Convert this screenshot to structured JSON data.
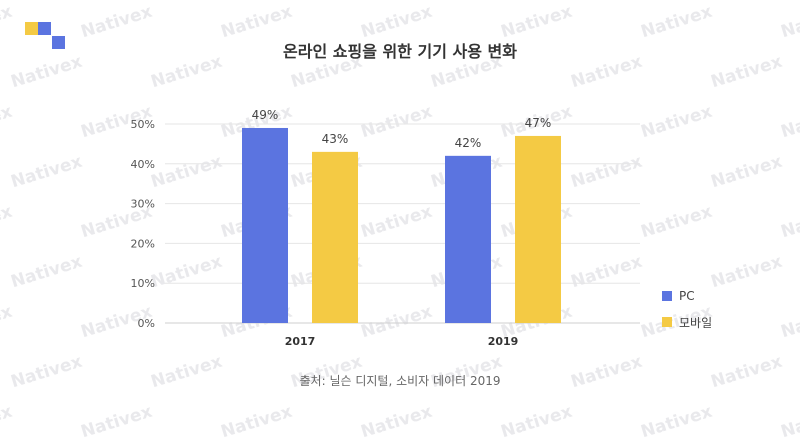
{
  "colors": {
    "logo": [
      "#f4ca44",
      "#5b74e0",
      "#5b74e0"
    ],
    "watermark": "#e9e9ec"
  },
  "watermark_text": "Nativex",
  "chart_data": {
    "type": "bar",
    "title": "온라인 쇼핑을 위한 기기 사용 변화",
    "categories": [
      "2017",
      "2019"
    ],
    "series": [
      {
        "name": "PC",
        "values": [
          49,
          42
        ],
        "labels": [
          "49%",
          "42%"
        ],
        "color": "#5b74e0"
      },
      {
        "name": "모바일",
        "values": [
          43,
          47
        ],
        "labels": [
          "43%",
          "47%"
        ],
        "color": "#f4ca44"
      }
    ],
    "ylim": [
      0,
      50
    ],
    "yticks": [
      "0%",
      "10%",
      "20%",
      "30%",
      "40%",
      "50%"
    ],
    "ytick_values": [
      0,
      10,
      20,
      30,
      40,
      50
    ],
    "grid": true,
    "legend": "right",
    "xlabel": "",
    "ylabel": ""
  },
  "source": "출처: 닐슨 디지털, 소비자 데이터 2019"
}
